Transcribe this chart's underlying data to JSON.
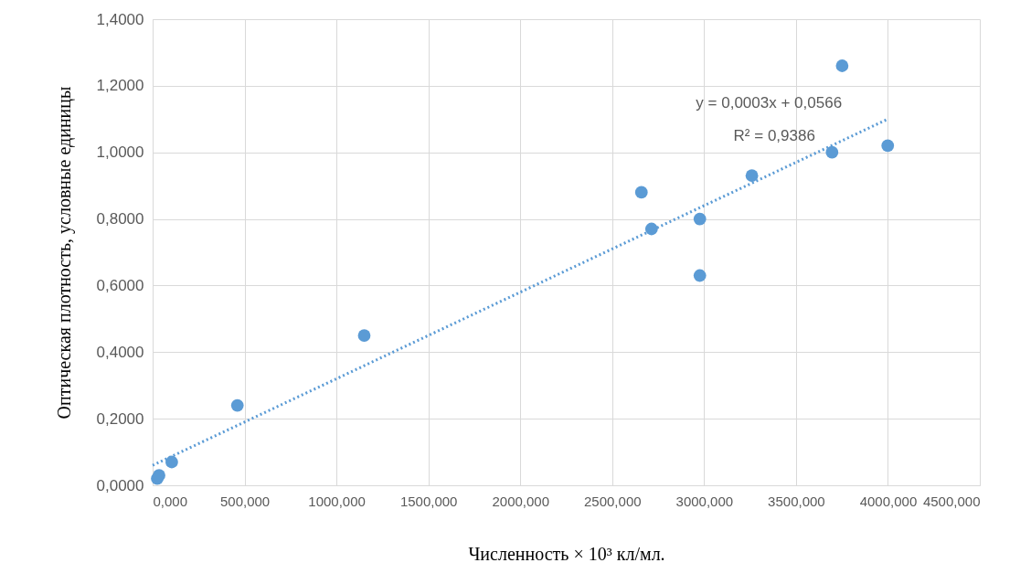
{
  "chart_data": {
    "type": "scatter",
    "xlabel": "Численность × 10³ кл/мл.",
    "ylabel": "Оптическая плотность, условные единицы",
    "series": [
      {
        "color": "#5b9bd5",
        "x": [
          25,
          35,
          104,
          461,
          1151,
          2659,
          2714,
          2977,
          2977,
          3260,
          3696,
          3751,
          3999
        ],
        "values": [
          0.02,
          0.03,
          0.07,
          0.24,
          0.45,
          0.88,
          0.77,
          0.8,
          0.63,
          0.93,
          1.0,
          1.26,
          1.02
        ]
      },
      {
        "type": "line",
        "color": "#5b9bd5",
        "line_style": "dotted",
        "marker": "none",
        "x": [
          0,
          4000
        ],
        "values": [
          0.06,
          1.1
        ]
      }
    ],
    "annotations": [
      "y = 0,0003x + 0,0566",
      "R² = 0,9386"
    ],
    "xlim": [
      0,
      4500
    ],
    "xticks": [
      {
        "value": 0,
        "label": "0,000"
      },
      {
        "value": 500,
        "label": "500,000"
      },
      {
        "value": 1000,
        "label": "1000,000"
      },
      {
        "value": 1500,
        "label": "1500,000"
      },
      {
        "value": 2000,
        "label": "2000,000"
      },
      {
        "value": 2500,
        "label": "2500,000"
      },
      {
        "value": 3000,
        "label": "3000,000"
      },
      {
        "value": 3500,
        "label": "3500,000"
      },
      {
        "value": 4000,
        "label": "4000,000"
      },
      {
        "value": 4500,
        "label": "4500,000"
      }
    ],
    "ylim": [
      0,
      1.4
    ],
    "yticks": [
      {
        "value": 0,
        "label": "0,0000"
      },
      {
        "value": 0.2,
        "label": "0,2000"
      },
      {
        "value": 0.4,
        "label": "0,4000"
      },
      {
        "value": 0.6,
        "label": "0,6000"
      },
      {
        "value": 0.8,
        "label": "0,8000"
      },
      {
        "value": 1.0,
        "label": "1,0000"
      },
      {
        "value": 1.2,
        "label": "1,2000"
      },
      {
        "value": 1.4,
        "label": "1,4000"
      }
    ],
    "grid": true,
    "marker": "circle"
  }
}
